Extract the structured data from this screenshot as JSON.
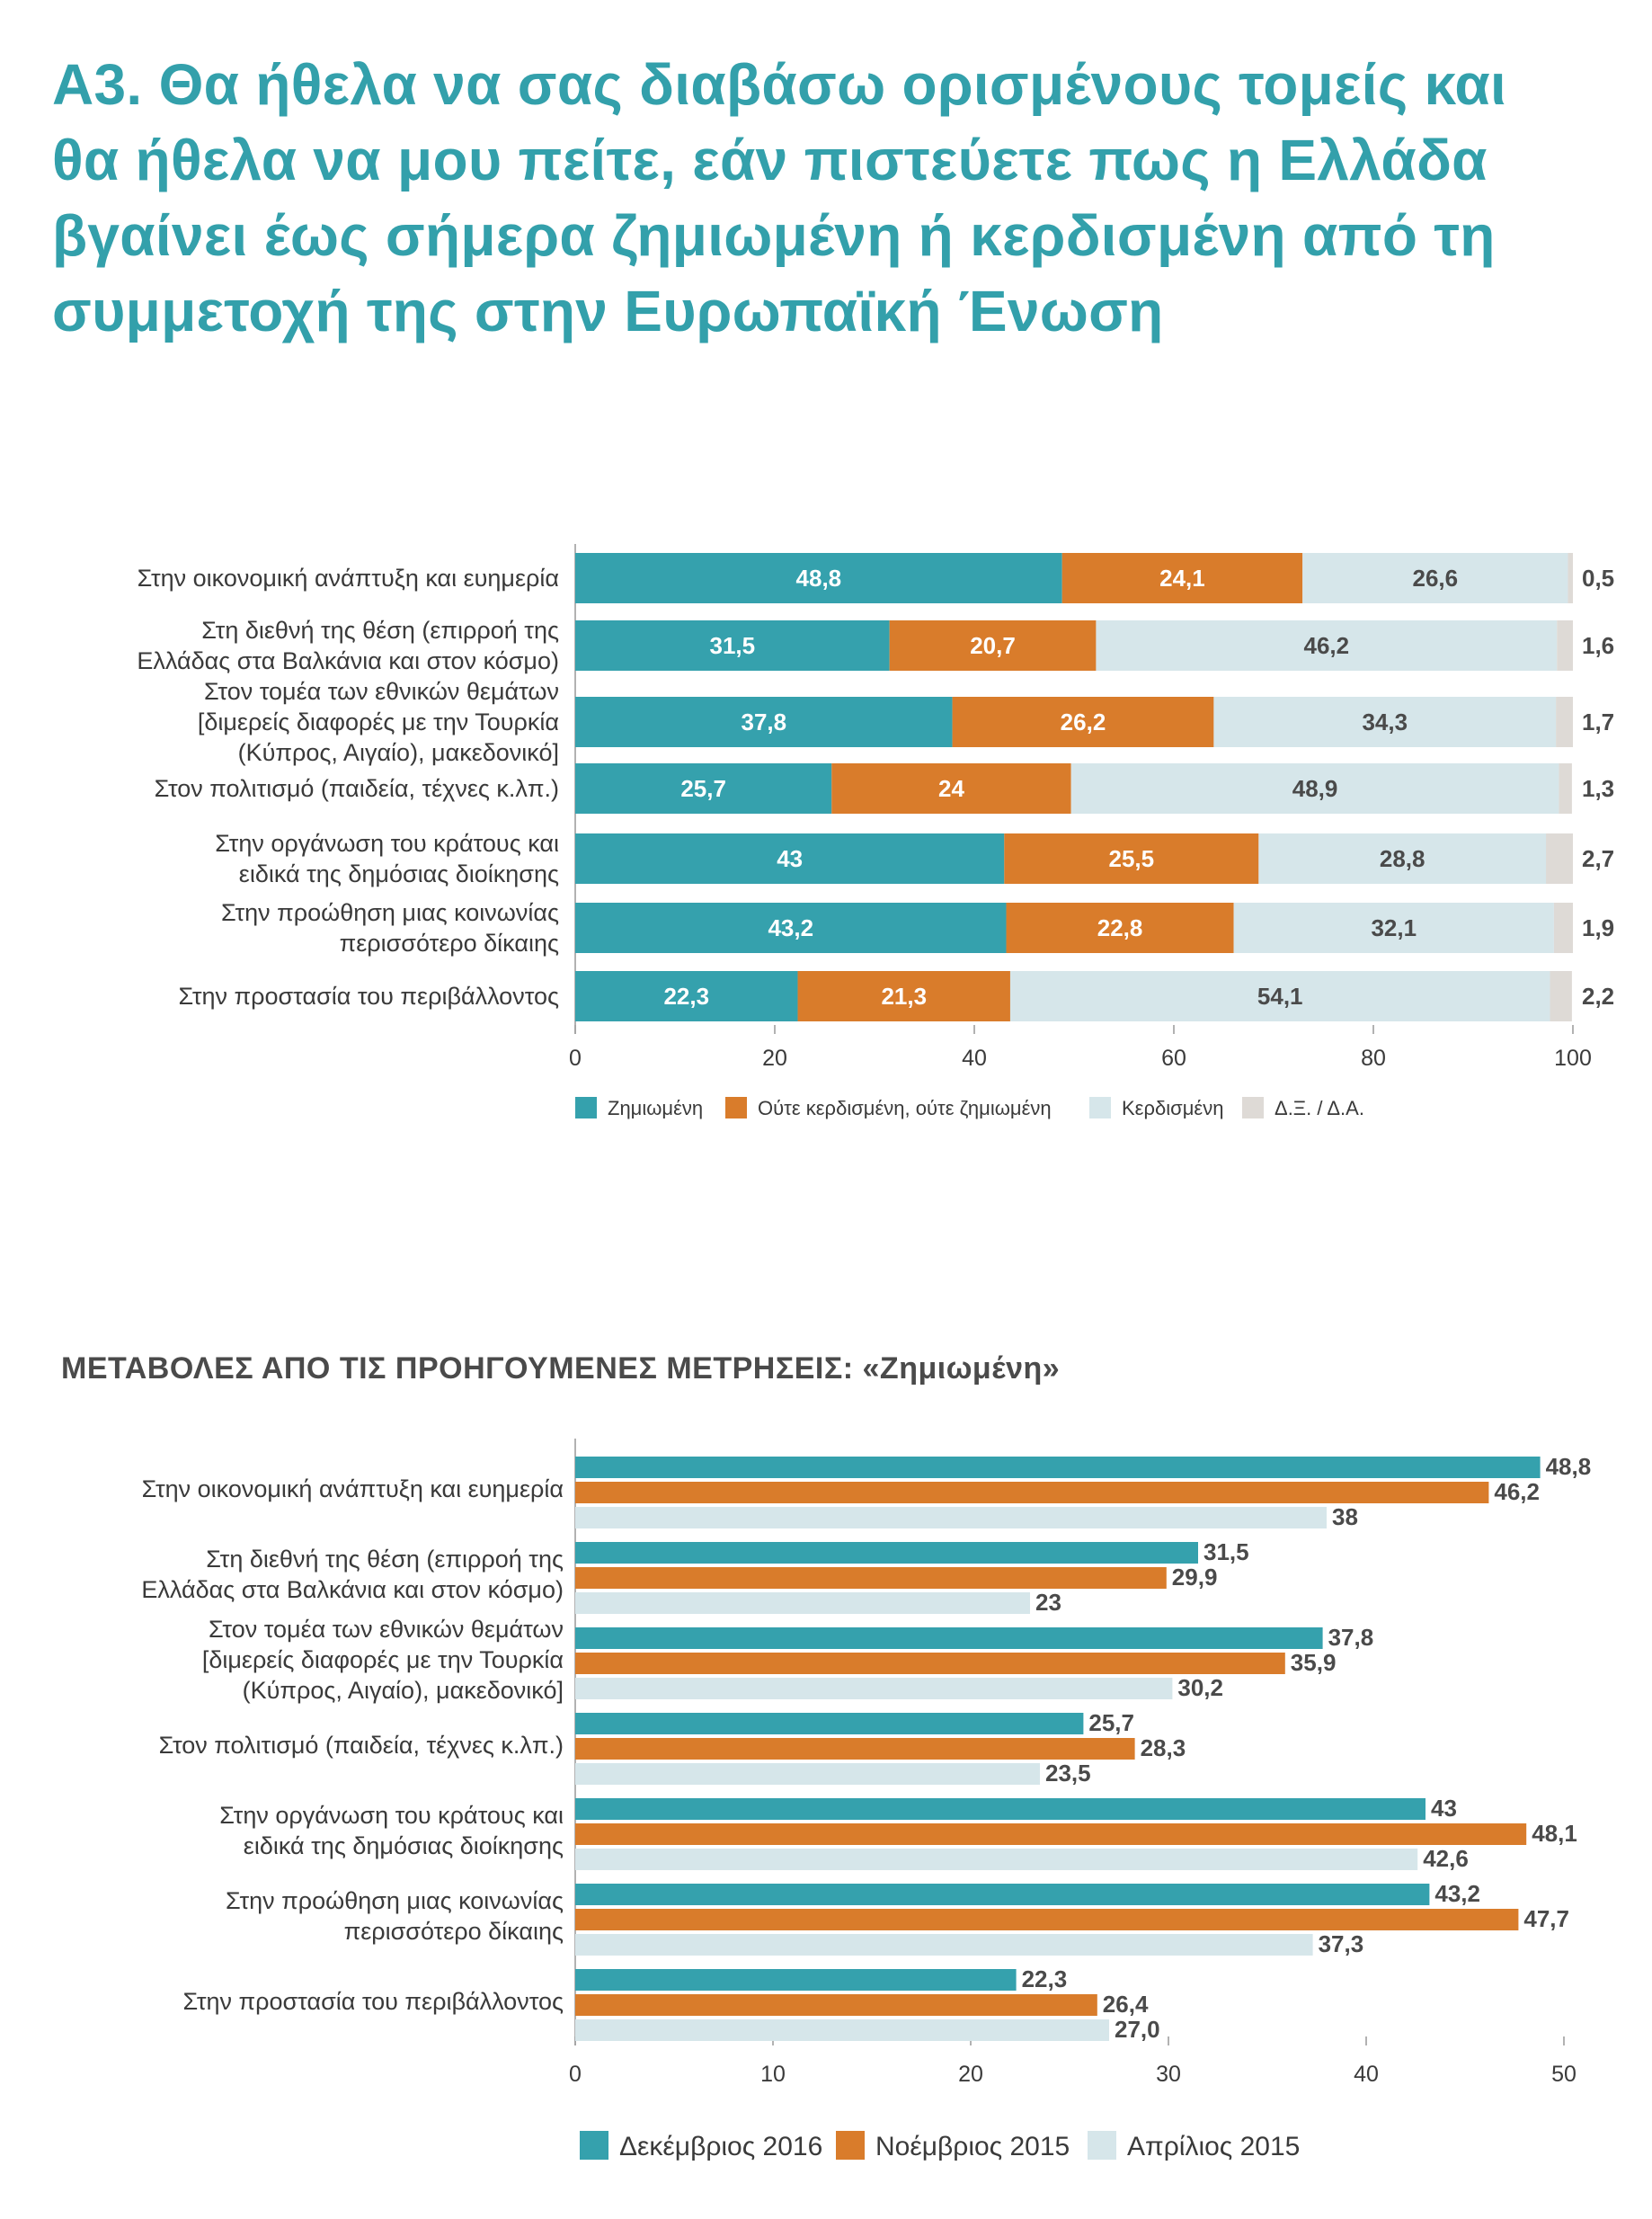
{
  "title": "Α3. Θα ήθελα να σας διαβάσω ορισμένους τομείς και θα ήθελα να μου πείτε, εάν πιστεύετε πως η Ελλάδα βγαίνει έως σήμερα ζημιωμένη ή κερδισμένη από τη συμμετοχή της στην Ευρωπαϊκή Ένωση",
  "subtitle": "ΜΕΤΑΒΟΛΕΣ ΑΠΟ ΤΙΣ ΠΡΟΗΓΟΥΜΕΝΕΣ ΜΕΤΡΗΣΕΙΣ: «Ζημιωμένη»",
  "chart_data": [
    {
      "type": "bar",
      "orientation": "horizontal",
      "stacked": true,
      "categories": [
        [
          "Στην οικονομική ανάπτυξη και ευημερία"
        ],
        [
          "Στη διεθνή της θέση (επιρροή της",
          "Ελλάδας στα Βαλκάνια και στον κόσμο)"
        ],
        [
          "Στον τομέα των εθνικών θεμάτων",
          "[διμερείς διαφορές με την Τουρκία",
          "(Κύπρος, Αιγαίο), μακεδονικό]"
        ],
        [
          "Στον πολιτισμό (παιδεία, τέχνες κ.λπ.)"
        ],
        [
          "Στην οργάνωση του κράτους και",
          "ειδικά της δημόσιας διοίκησης"
        ],
        [
          "Στην προώθηση μιας κοινωνίας",
          "περισσότερο δίκαιης"
        ],
        [
          "Στην προστασία του περιβάλλοντος"
        ]
      ],
      "series": [
        {
          "name": "Ζημιωμένη",
          "color": "#35a1ad",
          "values": [
            48.8,
            31.5,
            37.8,
            25.7,
            43,
            43.2,
            22.3
          ],
          "labels": [
            "48,8",
            "31,5",
            "37,8",
            "25,7",
            "43",
            "43,2",
            "22,3"
          ]
        },
        {
          "name": "Ούτε κερδισμένη, ούτε ζημιωμένη",
          "color": "#d97c2b",
          "values": [
            24.1,
            20.7,
            26.2,
            24,
            25.5,
            22.8,
            21.3
          ],
          "labels": [
            "24,1",
            "20,7",
            "26,2",
            "24",
            "25,5",
            "22,8",
            "21,3"
          ]
        },
        {
          "name": "Κερδισμένη",
          "color": "#d6e6ea",
          "values": [
            26.6,
            46.2,
            34.3,
            48.9,
            28.8,
            32.1,
            54.1
          ],
          "labels": [
            "26,6",
            "46,2",
            "34,3",
            "48,9",
            "28,8",
            "32,1",
            "54,1"
          ]
        },
        {
          "name": "Δ.Ξ. / Δ.Α.",
          "color": "#dedad6",
          "values": [
            0.5,
            1.6,
            1.7,
            1.3,
            2.7,
            1.9,
            2.2
          ],
          "labels": [
            "0,5",
            "1,6",
            "1,7",
            "1,3",
            "2,7",
            "1,9",
            "2,2"
          ]
        }
      ],
      "xlim": [
        0,
        100
      ],
      "xticks": [
        "0",
        "20",
        "40",
        "60",
        "80",
        "100"
      ],
      "legend": "bottom"
    },
    {
      "type": "bar",
      "orientation": "horizontal",
      "stacked": false,
      "categories": [
        [
          "Στην οικονομική ανάπτυξη και ευημερία"
        ],
        [
          "Στη διεθνή της θέση (επιρροή της",
          "Ελλάδας στα Βαλκάνια και στον κόσμο)"
        ],
        [
          "Στον τομέα των εθνικών θεμάτων",
          "[διμερείς διαφορές με την Τουρκία",
          "(Κύπρος, Αιγαίο), μακεδονικό]"
        ],
        [
          "Στον πολιτισμό (παιδεία, τέχνες κ.λπ.)"
        ],
        [
          "Στην οργάνωση του κράτους και",
          "ειδικά της δημόσιας διοίκησης"
        ],
        [
          "Στην προώθηση μιας κοινωνίας",
          "περισσότερο δίκαιης"
        ],
        [
          "Στην προστασία του περιβάλλοντος"
        ]
      ],
      "series": [
        {
          "name": "Δεκέμβριος 2016",
          "color": "#35a1ad",
          "values": [
            48.8,
            31.5,
            37.8,
            25.7,
            43,
            43.2,
            22.3
          ],
          "labels": [
            "48,8",
            "31,5",
            "37,8",
            "25,7",
            "43",
            "43,2",
            "22,3"
          ]
        },
        {
          "name": "Νοέμβριος 2015",
          "color": "#d97c2b",
          "values": [
            46.2,
            29.9,
            35.9,
            28.3,
            48.1,
            47.7,
            26.4
          ],
          "labels": [
            "46,2",
            "29,9",
            "35,9",
            "28,3",
            "48,1",
            "47,7",
            "26,4"
          ]
        },
        {
          "name": "Απρίλιος 2015",
          "color": "#d6e6ea",
          "values": [
            38,
            23,
            30.2,
            23.5,
            42.6,
            37.3,
            27.0
          ],
          "labels": [
            "38",
            "23",
            "30,2",
            "23,5",
            "42,6",
            "37,3",
            "27,0"
          ]
        }
      ],
      "xlim": [
        0,
        50
      ],
      "xticks": [
        "0",
        "10",
        "20",
        "30",
        "40",
        "50"
      ],
      "legend": "bottom"
    }
  ]
}
